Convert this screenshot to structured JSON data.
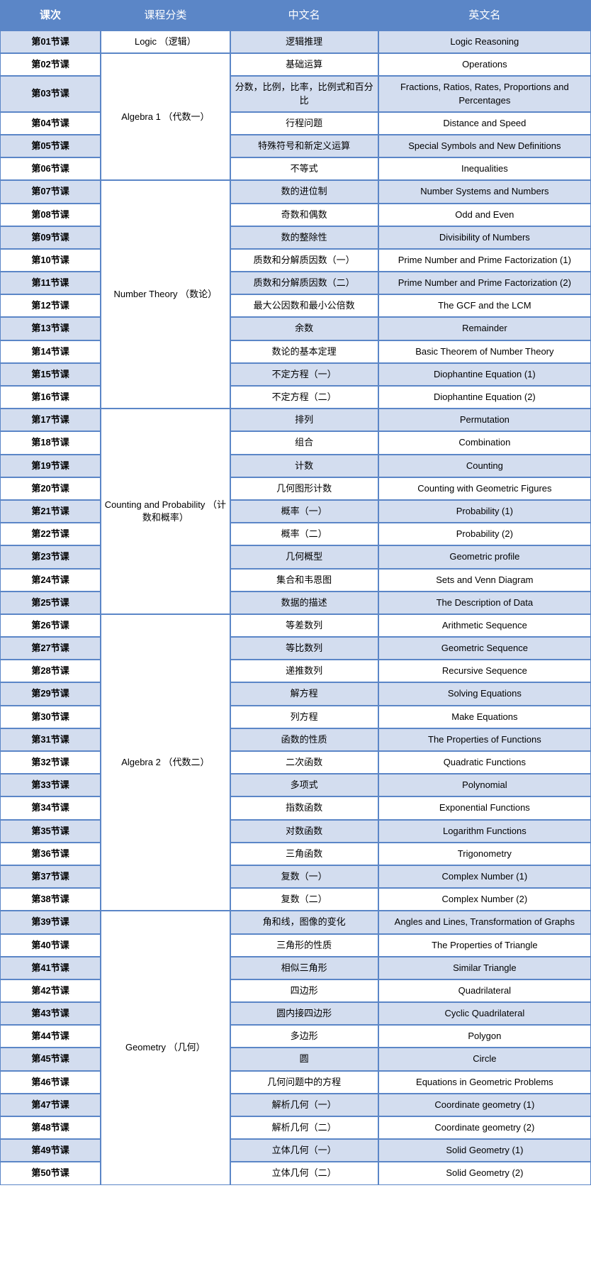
{
  "columns": {
    "lesson": "课次",
    "category": "课程分类",
    "cn": "中文名",
    "en": "英文名"
  },
  "colors": {
    "header_bg": "#5b86c7",
    "header_text": "#ffffff",
    "border": "#5b86c7",
    "shade_bg": "#d3ddef",
    "plain_bg": "#ffffff"
  },
  "rows": [
    {
      "lesson": "第01节课",
      "cn": "逻辑推理",
      "en": "Logic Reasoning",
      "catStart": true,
      "catSpan": 1,
      "cat": "Logic （逻辑）",
      "shade": true
    },
    {
      "lesson": "第02节课",
      "cn": "基础运算",
      "en": "Operations",
      "catStart": true,
      "catSpan": 5,
      "cat": "Algebra 1  （代数一）",
      "shade": false
    },
    {
      "lesson": "第03节课",
      "cn": "分数，比例，比率，比例式和百分比",
      "en": "Fractions, Ratios, Rates, Proportions and Percentages",
      "shade": true
    },
    {
      "lesson": "第04节课",
      "cn": "行程问题",
      "en": "Distance and Speed",
      "shade": false
    },
    {
      "lesson": "第05节课",
      "cn": "特殊符号和新定义运算",
      "en": "Special Symbols and New Definitions",
      "shade": true
    },
    {
      "lesson": "第06节课",
      "cn": "不等式",
      "en": "Inequalities",
      "shade": false
    },
    {
      "lesson": "第07节课",
      "cn": "数的进位制",
      "en": "Number Systems and Numbers",
      "catStart": true,
      "catSpan": 10,
      "cat": "Number Theory  （数论）",
      "shade": true
    },
    {
      "lesson": "第08节课",
      "cn": "奇数和偶数",
      "en": "Odd and Even",
      "shade": false
    },
    {
      "lesson": "第09节课",
      "cn": "数的整除性",
      "en": "Divisibility of Numbers",
      "shade": true
    },
    {
      "lesson": "第10节课",
      "cn": "质数和分解质因数（一）",
      "en": "Prime Number and Prime Factorization (1)",
      "shade": false
    },
    {
      "lesson": "第11节课",
      "cn": "质数和分解质因数（二）",
      "en": "Prime Number and Prime Factorization (2)",
      "shade": true
    },
    {
      "lesson": "第12节课",
      "cn": "最大公因数和最小公倍数",
      "en": "The GCF and the LCM",
      "shade": false
    },
    {
      "lesson": "第13节课",
      "cn": "余数",
      "en": "Remainder",
      "shade": true
    },
    {
      "lesson": "第14节课",
      "cn": "数论的基本定理",
      "en": "Basic Theorem of Number Theory",
      "shade": false
    },
    {
      "lesson": "第15节课",
      "cn": "不定方程（一）",
      "en": "Diophantine Equation (1)",
      "shade": true
    },
    {
      "lesson": "第16节课",
      "cn": "不定方程（二）",
      "en": "Diophantine Equation (2)",
      "shade": false
    },
    {
      "lesson": "第17节课",
      "cn": "排列",
      "en": "Permutation",
      "catStart": true,
      "catSpan": 9,
      "cat": "Counting and Probability  （计数和概率）",
      "shade": true
    },
    {
      "lesson": "第18节课",
      "cn": "组合",
      "en": "Combination",
      "shade": false
    },
    {
      "lesson": "第19节课",
      "cn": "计数",
      "en": "Counting",
      "shade": true
    },
    {
      "lesson": "第20节课",
      "cn": "几何图形计数",
      "en": "Counting with Geometric Figures",
      "shade": false
    },
    {
      "lesson": "第21节课",
      "cn": "概率（一）",
      "en": "Probability (1)",
      "shade": true
    },
    {
      "lesson": "第22节课",
      "cn": "概率（二）",
      "en": "Probability (2)",
      "shade": false
    },
    {
      "lesson": "第23节课",
      "cn": "几何概型",
      "en": "Geometric profile",
      "shade": true
    },
    {
      "lesson": "第24节课",
      "cn": "集合和韦恩图",
      "en": "Sets and Venn Diagram",
      "shade": false
    },
    {
      "lesson": "第25节课",
      "cn": "数据的描述",
      "en": "The Description of Data",
      "shade": true
    },
    {
      "lesson": "第26节课",
      "cn": "等差数列",
      "en": "Arithmetic Sequence",
      "catStart": true,
      "catSpan": 13,
      "cat": "Algebra 2  （代数二）",
      "shade": false
    },
    {
      "lesson": "第27节课",
      "cn": "等比数列",
      "en": "Geometric Sequence",
      "shade": true
    },
    {
      "lesson": "第28节课",
      "cn": "递推数列",
      "en": "Recursive Sequence",
      "shade": false
    },
    {
      "lesson": "第29节课",
      "cn": "解方程",
      "en": "Solving Equations",
      "shade": true
    },
    {
      "lesson": "第30节课",
      "cn": "列方程",
      "en": "Make Equations",
      "shade": false
    },
    {
      "lesson": "第31节课",
      "cn": "函数的性质",
      "en": "The Properties of Functions",
      "shade": true
    },
    {
      "lesson": "第32节课",
      "cn": "二次函数",
      "en": "Quadratic Functions",
      "shade": false
    },
    {
      "lesson": "第33节课",
      "cn": "多项式",
      "en": "Polynomial",
      "shade": true
    },
    {
      "lesson": "第34节课",
      "cn": "指数函数",
      "en": "Exponential Functions",
      "shade": false
    },
    {
      "lesson": "第35节课",
      "cn": "对数函数",
      "en": "Logarithm Functions",
      "shade": true
    },
    {
      "lesson": "第36节课",
      "cn": "三角函数",
      "en": "Trigonometry",
      "shade": false
    },
    {
      "lesson": "第37节课",
      "cn": "复数（一）",
      "en": "Complex Number (1)",
      "shade": true
    },
    {
      "lesson": "第38节课",
      "cn": "复数（二）",
      "en": "Complex Number (2)",
      "shade": false
    },
    {
      "lesson": "第39节课",
      "cn": "角和线，图像的变化",
      "en": "Angles and Lines, Transformation of Graphs",
      "catStart": true,
      "catSpan": 12,
      "cat": "Geometry  （几何）",
      "shade": true
    },
    {
      "lesson": "第40节课",
      "cn": "三角形的性质",
      "en": "The Properties of Triangle",
      "shade": false
    },
    {
      "lesson": "第41节课",
      "cn": "相似三角形",
      "en": "Similar Triangle",
      "shade": true
    },
    {
      "lesson": "第42节课",
      "cn": "四边形",
      "en": "Quadrilateral",
      "shade": false
    },
    {
      "lesson": "第43节课",
      "cn": "圆内接四边形",
      "en": "Cyclic Quadrilateral",
      "shade": true
    },
    {
      "lesson": "第44节课",
      "cn": "多边形",
      "en": "Polygon",
      "shade": false
    },
    {
      "lesson": "第45节课",
      "cn": "圆",
      "en": "Circle",
      "shade": true
    },
    {
      "lesson": "第46节课",
      "cn": "几何问题中的方程",
      "en": "Equations in Geometric Problems",
      "shade": false
    },
    {
      "lesson": "第47节课",
      "cn": "解析几何（一）",
      "en": "Coordinate geometry (1)",
      "shade": true
    },
    {
      "lesson": "第48节课",
      "cn": "解析几何（二）",
      "en": "Coordinate geometry (2)",
      "shade": false
    },
    {
      "lesson": "第49节课",
      "cn": "立体几何（一）",
      "en": "Solid Geometry (1)",
      "shade": true
    },
    {
      "lesson": "第50节课",
      "cn": "立体几何（二）",
      "en": "Solid Geometry (2)",
      "shade": false
    }
  ]
}
